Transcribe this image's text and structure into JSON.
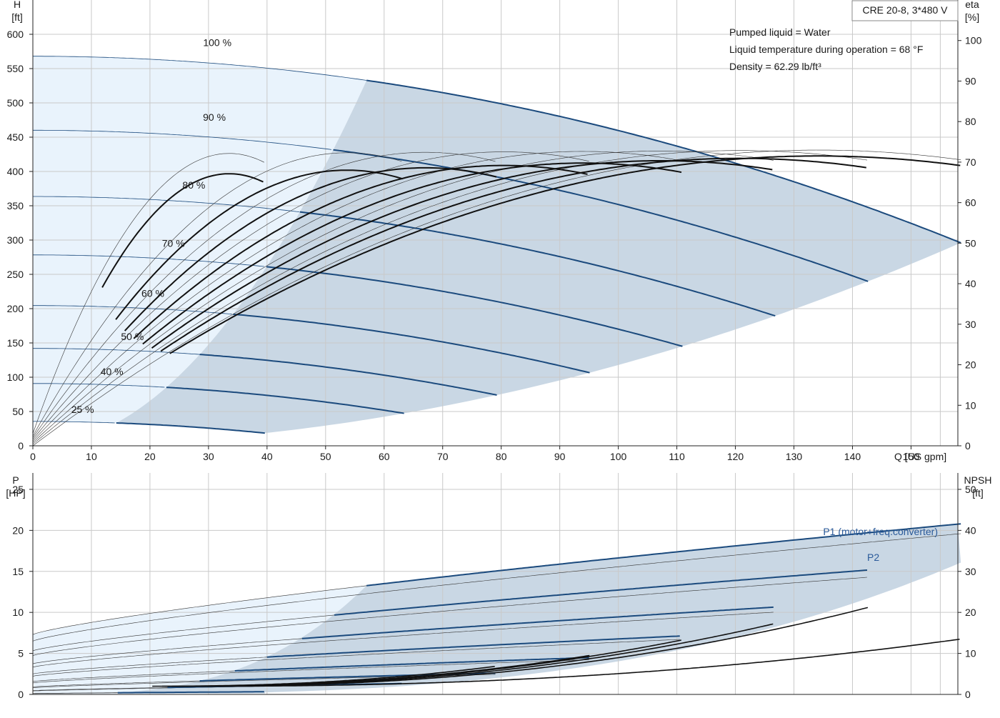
{
  "model_label": "CRE 20-8, 3*480 V",
  "info_lines": [
    "Pumped liquid = Water",
    "Liquid temperature during operation = 68 °F",
    "Density = 62.29 lb/ft³"
  ],
  "colors": {
    "curve": "#1b4a7d",
    "eff": "#111111",
    "thin": "#333333",
    "band_light": "#e9f3fc",
    "band_dark": "#c9d7e4",
    "label_blue": "#2a5a9a"
  },
  "chart_data": [
    {
      "type": "line",
      "name": "head",
      "y_title": "H",
      "y_unit": "[ft]",
      "y2_title": "eta",
      "y2_unit": "[%]",
      "xlabel": "Q [US gpm]",
      "xlim": [
        0,
        158
      ],
      "ylim": [
        0,
        650
      ],
      "y2lim": [
        0,
        110
      ],
      "x_ticks": [
        0,
        10,
        20,
        30,
        40,
        50,
        60,
        70,
        80,
        90,
        100,
        110,
        120,
        130,
        140,
        150
      ],
      "y_ticks": [
        0,
        50,
        100,
        150,
        200,
        250,
        300,
        350,
        400,
        450,
        500,
        550,
        600
      ],
      "y2_ticks": [
        0,
        10,
        20,
        30,
        40,
        50,
        60,
        70,
        80,
        90,
        100
      ],
      "speed_curves": [
        {
          "label": "100 %",
          "s": 1.0,
          "label_x": 31.5,
          "label_y": 583
        },
        {
          "label": "90 %",
          "s": 0.9,
          "label_x": 31,
          "label_y": 474
        },
        {
          "label": "80 %",
          "s": 0.8,
          "label_x": 27.5,
          "label_y": 375
        },
        {
          "label": "70 %",
          "s": 0.7,
          "label_x": 24,
          "label_y": 290
        },
        {
          "label": "60 %",
          "s": 0.6,
          "label_x": 20.5,
          "label_y": 217
        },
        {
          "label": "50 %",
          "s": 0.5,
          "label_x": 17,
          "label_y": 154
        },
        {
          "label": "40 %",
          "s": 0.4,
          "label_x": 13.5,
          "label_y": 103
        },
        {
          "label": "25 %",
          "s": 0.25,
          "label_x": 8.5,
          "label_y": 48
        }
      ],
      "head_model": {
        "h0": 568,
        "qmax": 158.5,
        "h_at_qmax": 296,
        "exp": 2.0
      },
      "light_region_end_q_at_full_speed": 57,
      "min_q_at_full_speed": 14
    },
    {
      "type": "line",
      "name": "power",
      "y_title": "P",
      "y_unit": "[HP]",
      "y2_title": "NPSH",
      "y2_unit": "[ft]",
      "xlim": [
        0,
        158
      ],
      "ylim": [
        0,
        27
      ],
      "y2lim": [
        0,
        54
      ],
      "y_ticks": [
        0,
        5,
        10,
        15,
        20,
        25
      ],
      "y2_ticks": [
        0,
        10,
        20,
        30,
        40,
        50
      ],
      "series_labels": {
        "p1": "P1 (motor+freq.converter)",
        "p2": "P2"
      },
      "p1_full_speed": {
        "p0": 7.3,
        "p_end": 20.8
      },
      "p2_full_speed": {
        "p0": 6.5,
        "p_end": 19.6
      },
      "npsh_end_ft": [
        13.5,
        21.2,
        17.3,
        13.3,
        9.5,
        6.9
      ]
    }
  ]
}
